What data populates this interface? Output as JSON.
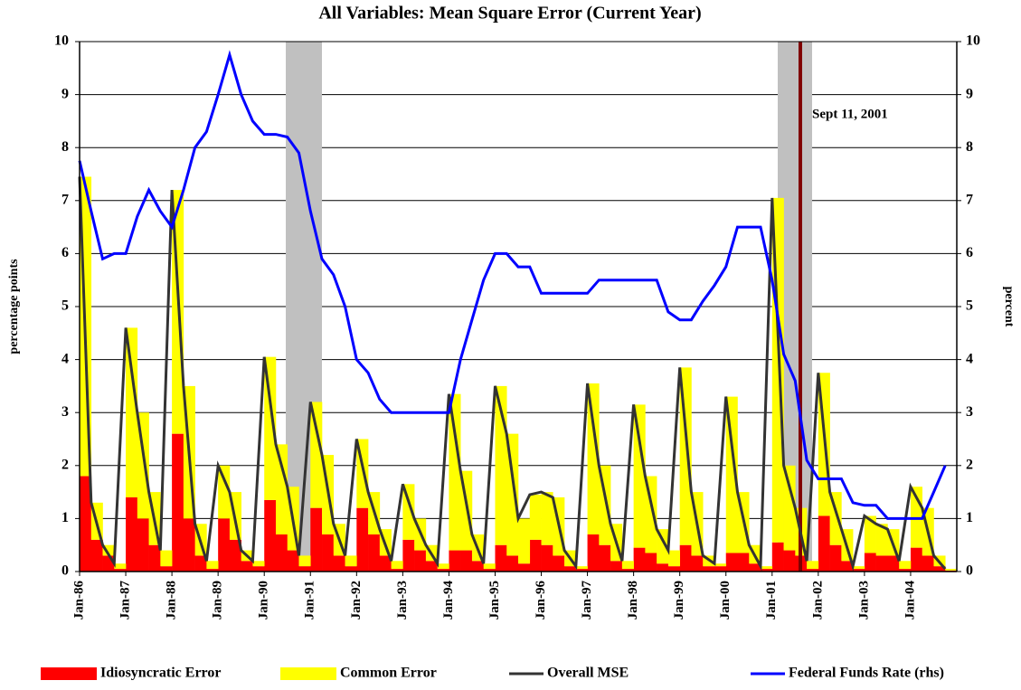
{
  "chart_data": {
    "type": "bar",
    "stacked": true,
    "title": "All Variables: Mean Square Error (Current Year)",
    "y_label": "percentage points",
    "y2_label": "percent",
    "annotation": "Sept 11, 2001",
    "categories": [
      "Jan-86",
      null,
      null,
      null,
      "Jan-87",
      null,
      null,
      null,
      "Jan-88",
      null,
      null,
      null,
      "Jan-89",
      null,
      null,
      null,
      "Jan-90",
      null,
      null,
      null,
      "Jan-91",
      null,
      null,
      null,
      "Jan-92",
      null,
      null,
      null,
      "Jan-93",
      null,
      null,
      null,
      "Jan-94",
      null,
      null,
      null,
      "Jan-95",
      null,
      null,
      null,
      "Jan-96",
      null,
      null,
      null,
      "Jan-97",
      null,
      null,
      null,
      "Jan-98",
      null,
      null,
      null,
      "Jan-99",
      null,
      null,
      null,
      "Jan-00",
      null,
      null,
      null,
      "Jan-01",
      null,
      null,
      null,
      "Jan-02",
      null,
      null,
      null,
      "Jan-03",
      null,
      null,
      null,
      "Jan-04",
      null,
      null,
      null
    ],
    "ylim": [
      0,
      10
    ],
    "yticks": [
      0,
      1,
      2,
      3,
      4,
      5,
      6,
      7,
      8,
      9,
      10
    ],
    "y2lim": [
      0,
      10
    ],
    "y2ticks": [
      0,
      1,
      2,
      3,
      4,
      5,
      6,
      7,
      8,
      9,
      10
    ],
    "grid": true,
    "series": [
      {
        "name": "Idiosyncratic Error",
        "kind": "bar",
        "color": "#ff0000",
        "values": [
          1.8,
          0.6,
          0.3,
          0.05,
          1.4,
          1.0,
          0.5,
          0.1,
          2.6,
          1.0,
          0.3,
          0.05,
          1.0,
          0.6,
          0.2,
          0.1,
          1.35,
          0.7,
          0.4,
          0.1,
          1.2,
          0.7,
          0.3,
          0.1,
          1.2,
          0.7,
          0.3,
          0.05,
          0.6,
          0.4,
          0.2,
          0.05,
          0.4,
          0.4,
          0.2,
          0.05,
          0.5,
          0.3,
          0.15,
          0.6,
          0.5,
          0.3,
          0.1,
          0.05,
          0.7,
          0.5,
          0.2,
          0.05,
          0.45,
          0.35,
          0.15,
          0.1,
          0.5,
          0.3,
          0.1,
          0.1,
          0.35,
          0.35,
          0.15,
          0.05,
          0.55,
          0.4,
          0.3,
          0.05,
          1.05,
          0.5,
          0.2,
          0.05,
          0.35,
          0.3,
          0.3,
          0.05,
          0.45,
          0.3,
          0.1,
          0.02
        ]
      },
      {
        "name": "Common Error",
        "kind": "bar",
        "color": "#ffff00",
        "values": [
          5.65,
          0.7,
          0.2,
          0.1,
          3.2,
          2.0,
          1.0,
          0.3,
          4.6,
          2.5,
          0.6,
          0.15,
          1.0,
          0.9,
          0.2,
          0.1,
          2.7,
          1.7,
          1.2,
          0.2,
          2.0,
          1.5,
          0.6,
          0.2,
          1.3,
          0.8,
          0.5,
          0.15,
          1.05,
          0.6,
          0.3,
          0.1,
          2.95,
          1.5,
          0.5,
          0.1,
          3.0,
          2.3,
          0.85,
          0.85,
          1.0,
          1.1,
          0.3,
          0.05,
          2.85,
          1.5,
          0.7,
          0.15,
          2.7,
          1.45,
          0.65,
          0.3,
          3.35,
          1.2,
          0.2,
          0.05,
          2.95,
          1.15,
          0.35,
          0.05,
          6.5,
          1.6,
          0.9,
          0.15,
          2.7,
          1.0,
          0.6,
          0.05,
          0.7,
          0.6,
          0.5,
          0.15,
          1.15,
          0.9,
          0.2,
          0.03
        ]
      },
      {
        "name": "Overall MSE",
        "kind": "line",
        "color": "#333333",
        "values": [
          7.45,
          1.3,
          0.5,
          0.15,
          4.6,
          3.0,
          1.5,
          0.4,
          7.2,
          3.5,
          0.9,
          0.2,
          2.0,
          1.5,
          0.4,
          0.2,
          4.05,
          2.4,
          1.6,
          0.3,
          3.2,
          2.2,
          0.9,
          0.3,
          2.5,
          1.5,
          0.8,
          0.2,
          1.65,
          1.0,
          0.5,
          0.15,
          3.35,
          1.9,
          0.7,
          0.15,
          3.5,
          2.6,
          1.0,
          1.45,
          1.5,
          1.4,
          0.4,
          0.1,
          3.55,
          2.0,
          0.9,
          0.2,
          3.15,
          1.8,
          0.8,
          0.4,
          3.85,
          1.5,
          0.3,
          0.15,
          3.3,
          1.5,
          0.5,
          0.1,
          7.05,
          2.0,
          1.2,
          0.2,
          3.75,
          1.5,
          0.8,
          0.1,
          1.05,
          0.9,
          0.8,
          0.2,
          1.6,
          1.2,
          0.3,
          0.05
        ]
      },
      {
        "name": "Federal Funds Rate (rhs)",
        "kind": "line",
        "axis": "y2",
        "color": "#0000ff",
        "values": [
          7.75,
          6.8,
          5.9,
          6.0,
          6.0,
          6.7,
          7.2,
          6.8,
          6.5,
          7.2,
          8.0,
          8.3,
          9.0,
          9.75,
          9.0,
          8.5,
          8.25,
          8.25,
          8.2,
          7.9,
          6.8,
          5.9,
          5.6,
          5.0,
          4.0,
          3.75,
          3.25,
          3.0,
          3,
          3,
          3,
          3,
          3.0,
          4.0,
          4.75,
          5.5,
          6.0,
          6.0,
          5.75,
          5.75,
          5.25,
          5.25,
          5.25,
          5.25,
          5.25,
          5.5,
          5.5,
          5.5,
          5.5,
          5.5,
          5.5,
          4.9,
          4.75,
          4.75,
          5.1,
          5.4,
          5.75,
          6.5,
          6.5,
          6.5,
          5.5,
          4.1,
          3.6,
          2.1,
          1.75,
          1.75,
          1.75,
          1.3,
          1.25,
          1.25,
          1.0,
          1.0,
          1.0,
          1.0,
          1.5,
          2.0
        ]
      }
    ]
  }
}
